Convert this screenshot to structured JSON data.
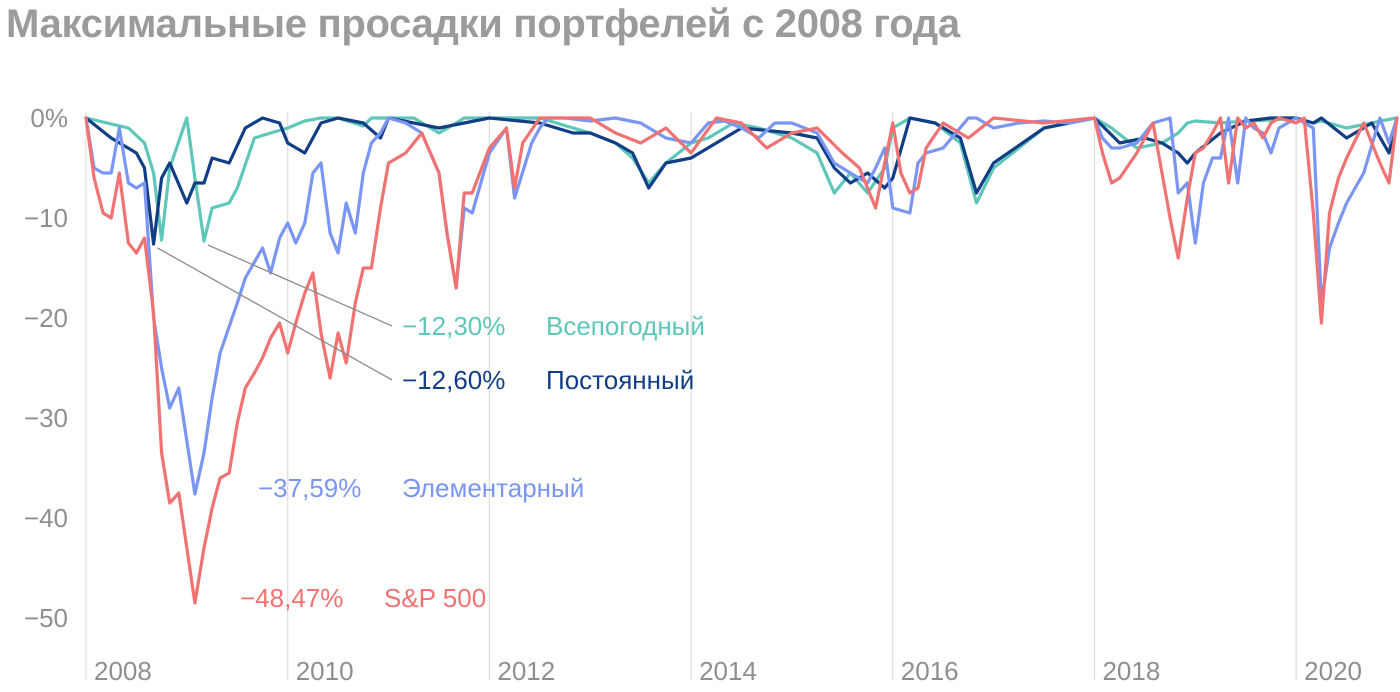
{
  "title": "Максимальные просадки портфелей с 2008 года",
  "chart_data": {
    "type": "line",
    "title": "Максимальные просадки портфелей с 2008 года",
    "xlim": [
      2008,
      2021
    ],
    "ylim": [
      -55,
      0
    ],
    "y_ticks": [
      0,
      -10,
      -20,
      -30,
      -40,
      -50
    ],
    "y_tick_labels": [
      "0%",
      "−10",
      "−20",
      "−30",
      "−40",
      "−50"
    ],
    "x_ticks": [
      2008,
      2010,
      2012,
      2014,
      2016,
      2018,
      2020
    ],
    "x_tick_labels": [
      "2008",
      "2010",
      "2012",
      "2014",
      "2016",
      "2018",
      "2020"
    ],
    "grid": "vertical",
    "series": [
      {
        "name": "Всепогодный",
        "color": "#5ec7b9",
        "min_label": "−12,30%",
        "x": [
          2008.0,
          2008.42,
          2008.58,
          2008.67,
          2008.75,
          2008.83,
          2009.0,
          2009.08,
          2009.17,
          2009.25,
          2009.42,
          2009.5,
          2009.67,
          2009.83,
          2010.0,
          2010.17,
          2010.33,
          2010.5,
          2010.75,
          2010.83,
          2011.0,
          2011.25,
          2011.5,
          2011.67,
          2011.75,
          2012.0,
          2012.5,
          2012.83,
          2013.0,
          2013.25,
          2013.42,
          2013.58,
          2013.75,
          2014.0,
          2014.17,
          2014.42,
          2014.67,
          2015.0,
          2015.25,
          2015.42,
          2015.58,
          2015.75,
          2015.92,
          2016.0,
          2016.17,
          2016.42,
          2016.67,
          2016.83,
          2017.0,
          2017.5,
          2018.0,
          2018.17,
          2018.42,
          2018.67,
          2018.83,
          2018.92,
          2019.0,
          2019.25,
          2019.5,
          2019.75,
          2020.0,
          2020.17,
          2020.25,
          2020.5,
          2020.75,
          2020.83,
          2021.0
        ],
        "y": [
          0,
          -1.0,
          -2.5,
          -5.5,
          -12.2,
          -5.0,
          0,
          -6.0,
          -12.3,
          -9.0,
          -8.5,
          -7.0,
          -2.0,
          -1.5,
          -1.0,
          -0.3,
          0,
          0,
          -0.8,
          0,
          0,
          0,
          -1.5,
          -0.5,
          0,
          0,
          0,
          -1.0,
          -1.5,
          -2.5,
          -4.0,
          -6.5,
          -4.5,
          -2.5,
          -2.0,
          -0.5,
          -1.0,
          -2.0,
          -3.5,
          -7.5,
          -5.5,
          -7.5,
          -5.0,
          -1.0,
          0,
          -0.5,
          -2.5,
          -8.5,
          -5.0,
          -1.0,
          0,
          -1.0,
          -3.0,
          -2.5,
          -1.5,
          -0.5,
          -0.3,
          -0.5,
          -0.3,
          -0.2,
          0,
          -0.5,
          -0.3,
          -1.0,
          -0.5,
          -0.3,
          0
        ]
      },
      {
        "name": "Постоянный",
        "color": "#123e85",
        "min_label": "−12,60%",
        "x": [
          2008.0,
          2008.25,
          2008.5,
          2008.58,
          2008.67,
          2008.75,
          2008.83,
          2009.0,
          2009.08,
          2009.17,
          2009.25,
          2009.42,
          2009.58,
          2009.75,
          2009.92,
          2010.0,
          2010.17,
          2010.33,
          2010.5,
          2010.75,
          2010.92,
          2011.0,
          2011.5,
          2011.75,
          2012.0,
          2012.5,
          2012.83,
          2013.0,
          2013.25,
          2013.42,
          2013.58,
          2013.75,
          2014.0,
          2014.5,
          2015.0,
          2015.25,
          2015.42,
          2015.58,
          2015.75,
          2015.92,
          2016.0,
          2016.17,
          2016.42,
          2016.67,
          2016.83,
          2017.0,
          2017.5,
          2018.0,
          2018.25,
          2018.5,
          2018.67,
          2018.83,
          2018.92,
          2019.0,
          2019.25,
          2019.5,
          2019.75,
          2020.0,
          2020.17,
          2020.25,
          2020.5,
          2020.75,
          2020.92,
          2021.0
        ],
        "y": [
          0,
          -2.0,
          -3.5,
          -5.0,
          -12.6,
          -6.0,
          -4.5,
          -8.5,
          -6.5,
          -6.5,
          -4.0,
          -4.5,
          -1.0,
          0,
          -0.5,
          -2.5,
          -3.5,
          -0.5,
          0,
          -0.5,
          -2.0,
          0,
          -1.0,
          -0.5,
          0,
          -0.5,
          -1.5,
          -1.5,
          -2.5,
          -3.5,
          -7.0,
          -4.5,
          -4.0,
          -1.0,
          -1.5,
          -2.0,
          -5.0,
          -6.5,
          -5.5,
          -7.0,
          -6.0,
          0,
          -0.5,
          -2.0,
          -7.5,
          -4.5,
          -1.0,
          0,
          -2.5,
          -2.0,
          -2.5,
          -3.5,
          -4.5,
          -3.5,
          -1.5,
          -0.3,
          0,
          0,
          -0.5,
          0,
          -2.0,
          -0.5,
          -3.5,
          0
        ]
      },
      {
        "name": "Элементарный",
        "color": "#7a96f2",
        "min_label": "−37,59%",
        "x": [
          2008.0,
          2008.08,
          2008.17,
          2008.25,
          2008.33,
          2008.42,
          2008.5,
          2008.58,
          2008.67,
          2008.75,
          2008.83,
          2008.92,
          2009.08,
          2009.17,
          2009.25,
          2009.33,
          2009.5,
          2009.58,
          2009.75,
          2009.83,
          2009.92,
          2010.0,
          2010.08,
          2010.17,
          2010.25,
          2010.33,
          2010.42,
          2010.5,
          2010.58,
          2010.67,
          2010.75,
          2010.83,
          2010.92,
          2011.0,
          2011.17,
          2011.33,
          2011.5,
          2011.58,
          2011.67,
          2011.75,
          2011.83,
          2012.0,
          2012.17,
          2012.25,
          2012.42,
          2012.5,
          2012.58,
          2012.75,
          2013.0,
          2013.25,
          2013.5,
          2013.75,
          2014.0,
          2014.17,
          2014.33,
          2014.5,
          2014.67,
          2014.83,
          2015.0,
          2015.25,
          2015.42,
          2015.58,
          2015.75,
          2015.83,
          2015.92,
          2016.0,
          2016.17,
          2016.25,
          2016.33,
          2016.5,
          2016.75,
          2016.83,
          2017.0,
          2017.25,
          2017.5,
          2017.75,
          2018.0,
          2018.08,
          2018.17,
          2018.25,
          2018.42,
          2018.58,
          2018.75,
          2018.83,
          2018.92,
          2019.0,
          2019.08,
          2019.17,
          2019.25,
          2019.33,
          2019.42,
          2019.5,
          2019.58,
          2019.67,
          2019.75,
          2019.83,
          2020.0,
          2020.08,
          2020.17,
          2020.25,
          2020.33,
          2020.42,
          2020.5,
          2020.67,
          2020.83,
          2020.92,
          2021.0
        ],
        "y": [
          0,
          -5.0,
          -5.5,
          -5.5,
          -1.0,
          -6.5,
          -7.0,
          -6.5,
          -20.0,
          -25.0,
          -29.0,
          -27.0,
          -37.6,
          -33.5,
          -28.0,
          -23.5,
          -18.5,
          -16.0,
          -13.0,
          -15.5,
          -12.0,
          -10.5,
          -12.5,
          -10.5,
          -5.5,
          -4.5,
          -11.5,
          -13.5,
          -8.5,
          -11.5,
          -5.5,
          -2.5,
          -1.5,
          0,
          -0.5,
          -1.5,
          -5.5,
          -11.5,
          -17.0,
          -9.0,
          -9.5,
          -3.5,
          -1.0,
          -8.0,
          -2.5,
          -1.0,
          0,
          0,
          -0.3,
          0,
          -0.5,
          -2.0,
          -2.5,
          -0.5,
          -0.3,
          -1.0,
          -2.0,
          -0.5,
          -0.5,
          -1.5,
          -4.5,
          -5.5,
          -6.5,
          -5.0,
          -3.0,
          -9.0,
          -9.5,
          -4.5,
          -3.5,
          -3.0,
          0,
          0,
          -1.0,
          -0.5,
          -0.3,
          -0.5,
          0,
          -2.0,
          -3.0,
          -3.0,
          -2.5,
          -0.5,
          0,
          -7.5,
          -6.5,
          -12.5,
          -6.5,
          -4.0,
          -4.0,
          0,
          -6.5,
          0,
          -1.0,
          -1.5,
          -3.5,
          -1.0,
          0,
          -0.5,
          -1.0,
          -18.5,
          -13.0,
          -10.5,
          -8.5,
          -5.5,
          0,
          -2.5,
          0
        ]
      },
      {
        "name": "S&P 500",
        "color": "#f07272",
        "min_label": "−48,47%",
        "x": [
          2008.0,
          2008.08,
          2008.17,
          2008.25,
          2008.33,
          2008.42,
          2008.5,
          2008.58,
          2008.67,
          2008.75,
          2008.83,
          2008.92,
          2009.08,
          2009.17,
          2009.25,
          2009.33,
          2009.42,
          2009.5,
          2009.58,
          2009.67,
          2009.75,
          2009.83,
          2009.92,
          2010.0,
          2010.08,
          2010.17,
          2010.25,
          2010.33,
          2010.42,
          2010.5,
          2010.58,
          2010.67,
          2010.75,
          2010.83,
          2010.92,
          2011.0,
          2011.17,
          2011.33,
          2011.5,
          2011.58,
          2011.67,
          2011.75,
          2011.83,
          2012.0,
          2012.17,
          2012.25,
          2012.33,
          2012.5,
          2012.75,
          2013.0,
          2013.25,
          2013.5,
          2013.75,
          2014.0,
          2014.25,
          2014.5,
          2014.75,
          2015.0,
          2015.25,
          2015.5,
          2015.67,
          2015.83,
          2016.0,
          2016.08,
          2016.17,
          2016.25,
          2016.33,
          2016.5,
          2016.75,
          2017.0,
          2017.5,
          2018.0,
          2018.08,
          2018.17,
          2018.25,
          2018.42,
          2018.58,
          2018.75,
          2018.83,
          2018.92,
          2019.0,
          2019.08,
          2019.17,
          2019.25,
          2019.33,
          2019.42,
          2019.5,
          2019.58,
          2019.67,
          2019.75,
          2019.83,
          2020.0,
          2020.08,
          2020.17,
          2020.25,
          2020.33,
          2020.42,
          2020.5,
          2020.67,
          2020.83,
          2020.92,
          2021.0
        ],
        "y": [
          0,
          -6.0,
          -9.5,
          -10.0,
          -5.5,
          -12.5,
          -13.5,
          -12.0,
          -19.5,
          -33.5,
          -38.5,
          -37.5,
          -48.5,
          -43.0,
          -39.0,
          -36.0,
          -35.5,
          -30.5,
          -27.0,
          -25.5,
          -24.0,
          -22.0,
          -20.5,
          -23.5,
          -20.5,
          -17.5,
          -15.5,
          -21.5,
          -26.0,
          -21.5,
          -24.5,
          -18.5,
          -15.0,
          -15.0,
          -9.0,
          -4.5,
          -3.5,
          -1.5,
          -5.5,
          -11.5,
          -17.0,
          -7.5,
          -7.5,
          -3.0,
          -1.0,
          -7.0,
          -2.5,
          0,
          0,
          0,
          -1.5,
          -2.5,
          -1.0,
          -3.5,
          0,
          -0.5,
          -3.0,
          -1.5,
          -1.0,
          -3.5,
          -5.0,
          -9.0,
          -0.5,
          -5.5,
          -7.5,
          -7.0,
          -3.0,
          -0.5,
          -2.0,
          0,
          -0.5,
          0,
          -3.5,
          -6.5,
          -6.0,
          -3.5,
          -0.5,
          -10.0,
          -14.0,
          -8.0,
          -3.5,
          -3.0,
          -1.5,
          0,
          -6.5,
          0,
          -1.0,
          -0.5,
          -2.0,
          -0.5,
          0,
          -0.5,
          0,
          -9.5,
          -20.5,
          -9.5,
          -6.0,
          -4.0,
          -0.5,
          -4.5,
          -6.5,
          0
        ]
      }
    ]
  }
}
